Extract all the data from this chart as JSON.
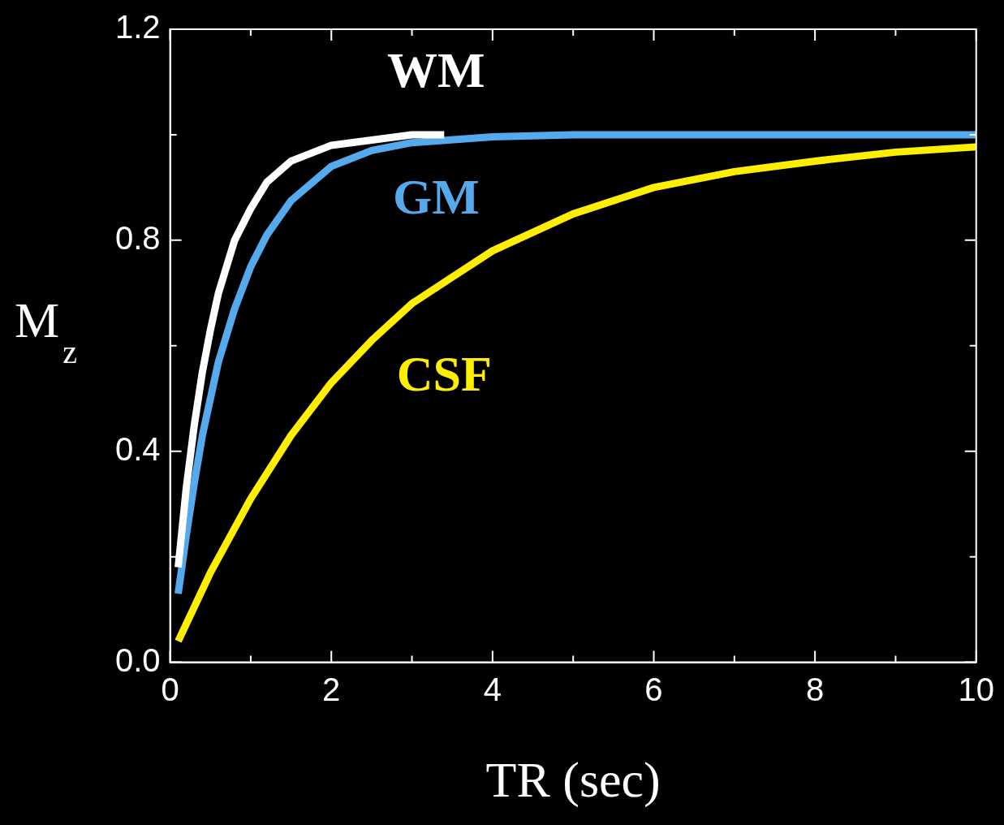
{
  "chart_data": {
    "type": "line",
    "xlabel": "TR (sec)",
    "ylabel": "M$_{z}$",
    "xlim": [
      0,
      10
    ],
    "ylim": [
      0,
      1.2
    ],
    "xticks": [
      0,
      {
        "value": 1,
        "label": null
      },
      2,
      {
        "value": 3,
        "label": null
      },
      4,
      {
        "value": 5,
        "label": null
      },
      6,
      {
        "value": 7,
        "label": null
      },
      8,
      {
        "value": 9,
        "label": null
      },
      10
    ],
    "yticks": [
      {
        "value": 0,
        "label": "0.0"
      },
      {
        "value": 0.2,
        "label": null
      },
      0.4,
      {
        "value": 0.6,
        "label": null
      },
      0.8,
      {
        "value": 1.0,
        "label": null
      },
      1.2
    ],
    "grid": false,
    "marker": "none",
    "line_style": "solid",
    "series": [
      {
        "name": "WM",
        "color": "#ffffff",
        "x": [
          0.1,
          0.2,
          0.3,
          0.4,
          0.5,
          0.6,
          0.8,
          1.0,
          1.2,
          1.5,
          2,
          2.5,
          3,
          3.4
        ],
        "values": [
          0.18,
          0.33,
          0.45,
          0.55,
          0.63,
          0.7,
          0.8,
          0.86,
          0.91,
          0.95,
          0.98,
          0.99,
          1.0,
          1.0
        ]
      },
      {
        "name": "GM",
        "color": "#55aaee",
        "x": [
          0.1,
          0.2,
          0.3,
          0.4,
          0.5,
          0.6,
          0.8,
          1.0,
          1.2,
          1.5,
          2,
          2.5,
          3,
          4,
          5,
          6,
          8,
          10
        ],
        "values": [
          0.13,
          0.24,
          0.34,
          0.43,
          0.5,
          0.57,
          0.67,
          0.75,
          0.81,
          0.875,
          0.94,
          0.97,
          0.985,
          0.996,
          1.0,
          1.0,
          1.0,
          1.0
        ]
      },
      {
        "name": "CSF",
        "color": "#ffee00",
        "x": [
          0.1,
          0.5,
          1,
          1.5,
          2,
          2.5,
          3,
          3.5,
          4,
          5,
          6,
          7,
          8,
          9,
          10
        ],
        "values": [
          0.04,
          0.17,
          0.31,
          0.43,
          0.53,
          0.61,
          0.68,
          0.73,
          0.78,
          0.85,
          0.9,
          0.93,
          0.95,
          0.967,
          0.977
        ]
      }
    ]
  }
}
